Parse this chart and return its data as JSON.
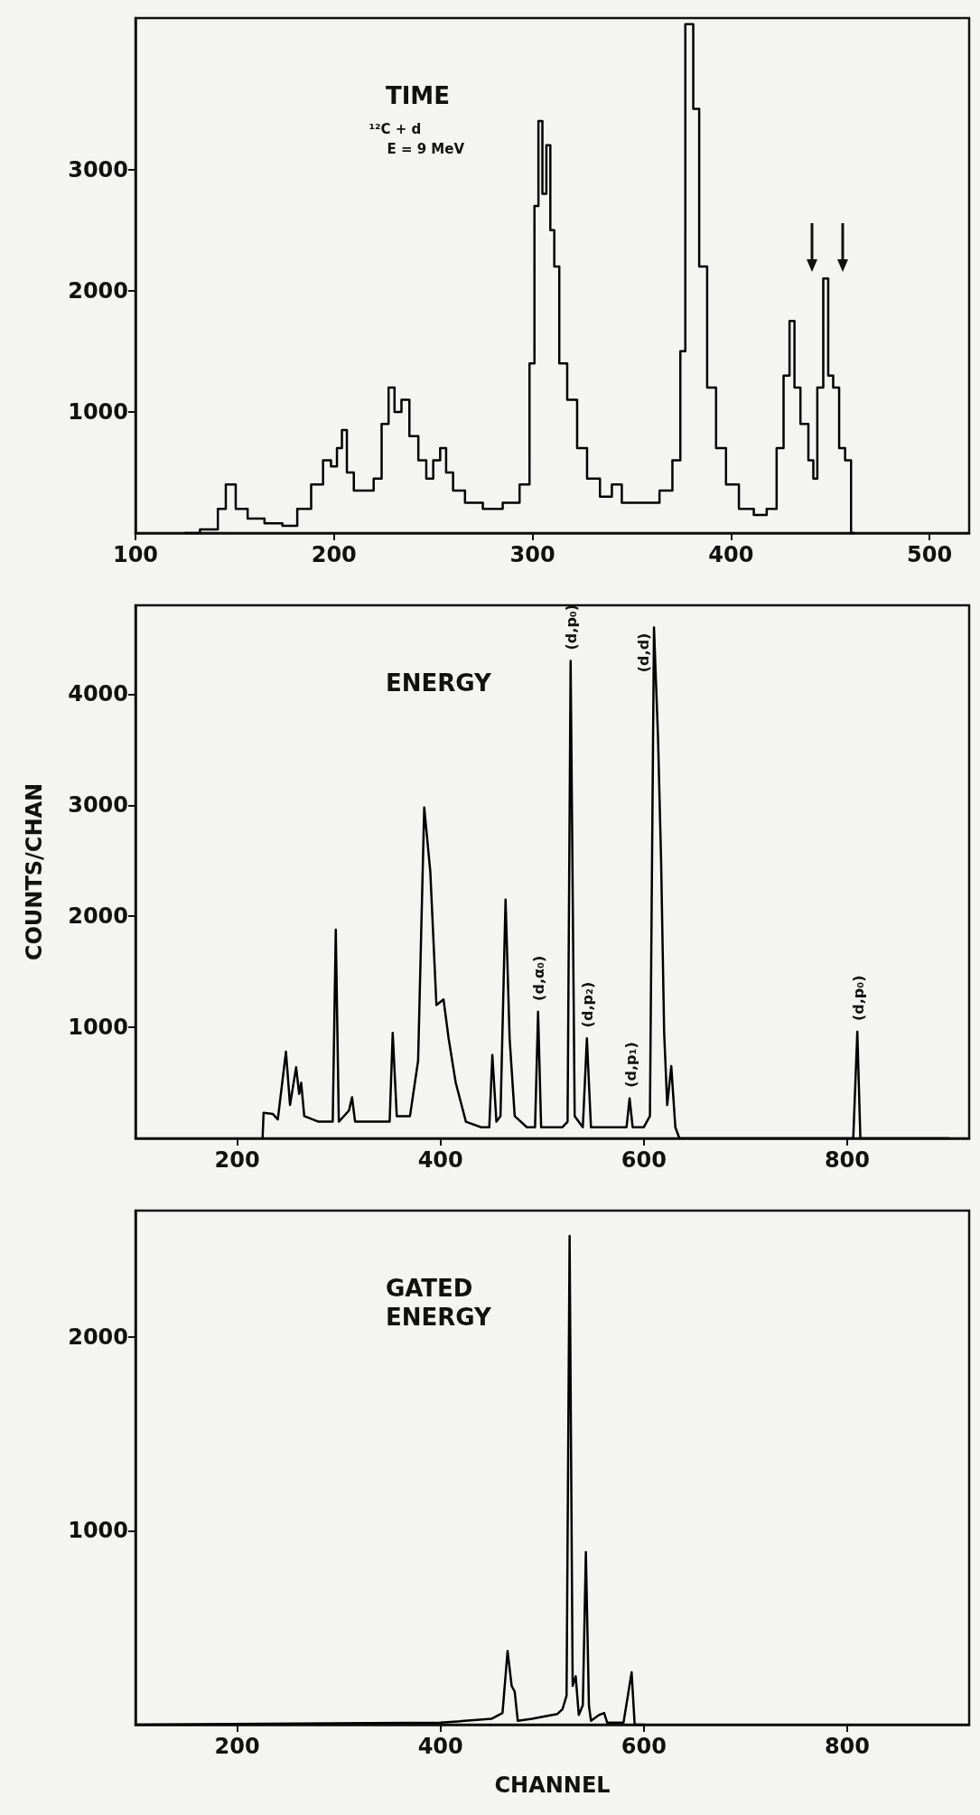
{
  "chart_data": [
    {
      "type": "step",
      "title": "TIME",
      "annotations": [
        "¹²C + d",
        "E = 9 MeV"
      ],
      "x": [
        125,
        140,
        143,
        148,
        153,
        160,
        170,
        178,
        185,
        192,
        197,
        200,
        203,
        205,
        208,
        212,
        218,
        222,
        226,
        229,
        232,
        236,
        240,
        245,
        248,
        252,
        255,
        258,
        262,
        270,
        280,
        290,
        297,
        300,
        302,
        304,
        306,
        308,
        310,
        312,
        315,
        320,
        325,
        330,
        338,
        342,
        348,
        360,
        368,
        373,
        376,
        378,
        380,
        382,
        386,
        390,
        395,
        400,
        408,
        415,
        421,
        425,
        428,
        431,
        433,
        437,
        441,
        442,
        445,
        448,
        450,
        453,
        456,
        459,
        462
      ],
      "values": [
        0,
        30,
        200,
        400,
        200,
        120,
        80,
        60,
        200,
        400,
        600,
        550,
        700,
        850,
        500,
        350,
        350,
        450,
        900,
        1200,
        1000,
        1100,
        800,
        600,
        450,
        600,
        700,
        500,
        350,
        250,
        200,
        250,
        400,
        1400,
        2700,
        3400,
        2800,
        3200,
        2500,
        2200,
        1400,
        1100,
        700,
        450,
        300,
        400,
        250,
        250,
        350,
        600,
        1500,
        4200,
        4200,
        3500,
        2200,
        1200,
        700,
        400,
        200,
        150,
        200,
        700,
        1300,
        1750,
        1200,
        900,
        600,
        450,
        1200,
        2100,
        1300,
        1200,
        700,
        600,
        0
      ],
      "color": "#000000",
      "marker": "none",
      "xlim": [
        100,
        520
      ],
      "ylim": [
        0,
        4250
      ],
      "xticks": [
        100,
        200,
        300,
        400,
        500
      ],
      "yticks": [
        1000,
        2000,
        3000
      ]
    },
    {
      "type": "line",
      "title": "ENERGY",
      "ylabel": "COUNTS/CHAN",
      "annotations": [
        {
          "text": "(d,α₀)",
          "x": 496,
          "y": 1140
        },
        {
          "text": "(d,p₀)",
          "x": 528,
          "y": 4300
        },
        {
          "text": "(d,p₂)",
          "x": 544,
          "y": 900
        },
        {
          "text": "(d,p₁)",
          "x": 586,
          "y": 360
        },
        {
          "text": "(d,d)",
          "x": 610,
          "y": 4600
        },
        {
          "text": "(d,p₀)",
          "x": 810,
          "y": 960
        }
      ],
      "x": [
        225,
        226,
        235,
        240,
        248,
        252,
        258,
        261,
        263,
        266,
        280,
        294,
        297,
        300,
        310,
        313,
        316,
        340,
        350,
        353,
        357,
        365,
        370,
        378,
        384,
        390,
        396,
        403,
        408,
        415,
        425,
        440,
        448,
        451,
        455,
        459,
        464,
        468,
        473,
        485,
        493,
        496,
        499,
        520,
        525,
        528,
        532,
        540,
        544,
        548,
        570,
        583,
        586,
        589,
        600,
        606,
        610,
        614,
        617,
        620,
        623,
        627,
        631,
        635,
        760,
        806,
        810,
        813,
        900
      ],
      "values": [
        0,
        230,
        220,
        170,
        780,
        300,
        640,
        400,
        500,
        200,
        150,
        150,
        1880,
        150,
        250,
        370,
        150,
        150,
        150,
        950,
        200,
        200,
        200,
        700,
        2980,
        2400,
        1200,
        1250,
        900,
        500,
        150,
        100,
        100,
        750,
        150,
        200,
        2150,
        900,
        200,
        100,
        100,
        1140,
        100,
        100,
        150,
        4300,
        200,
        100,
        900,
        100,
        100,
        100,
        360,
        100,
        100,
        200,
        4600,
        3600,
        2500,
        950,
        300,
        650,
        100,
        0,
        0,
        0,
        960,
        0,
        0
      ],
      "color": "#000000",
      "marker": "none",
      "xlim": [
        100,
        920
      ],
      "ylim": [
        0,
        4800
      ],
      "xticks": [
        200,
        400,
        600,
        800
      ],
      "yticks": [
        1000,
        2000,
        3000,
        4000
      ]
    },
    {
      "type": "line",
      "title": "GATED ENERGY",
      "xlabel": "CHANNEL",
      "x": [
        100,
        400,
        450,
        461,
        466,
        470,
        473,
        476,
        490,
        510,
        515,
        520,
        524,
        527,
        530,
        533,
        536,
        540,
        543,
        546,
        548,
        556,
        561,
        564,
        580,
        588,
        591,
        600
      ],
      "values": [
        0,
        10,
        30,
        60,
        380,
        200,
        170,
        20,
        30,
        50,
        55,
        80,
        150,
        2520,
        200,
        250,
        50,
        100,
        890,
        100,
        20,
        50,
        60,
        10,
        10,
        270,
        0,
        0
      ],
      "color": "#000000",
      "marker": "none",
      "xlim": [
        100,
        920
      ],
      "ylim": [
        0,
        2650
      ],
      "xticks": [
        200,
        400,
        600,
        800
      ],
      "yticks": [
        1000,
        2000
      ]
    }
  ]
}
